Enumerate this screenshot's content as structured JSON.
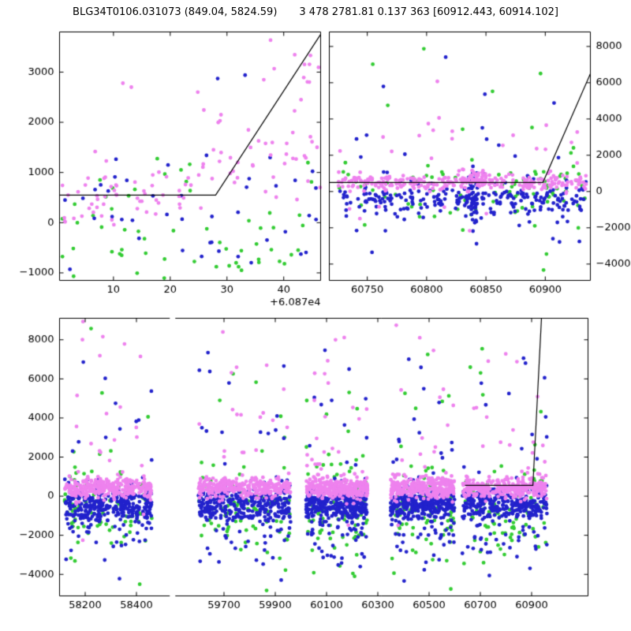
{
  "figure": {
    "title_left": "BLG34T0106.031073 (849.04, 5824.59)",
    "title_right": "3 478 2781.81 0.137 363 [60912.443, 60914.102]",
    "background": "#ffffff"
  },
  "chart_data": [
    {
      "id": "top-left-zoom",
      "type": "scatter",
      "xlim": [
        [
          0.5,
          46.5
        ]
      ],
      "xticks": [
        10,
        20,
        30,
        40
      ],
      "x_offset_label": "+6.087e4",
      "ylim": [
        -1150,
        3800
      ],
      "yticks": [
        -1000,
        0,
        1000,
        2000,
        3000
      ],
      "yaxis_side": "left",
      "model_line": [
        [
          0.5,
          550
        ],
        [
          28,
          550
        ],
        [
          46.5,
          3750
        ]
      ],
      "series": [
        {
          "name": "green",
          "color": "#33cc33",
          "clusters": [
            {
              "x": [
                0.5,
                46.5
              ],
              "n": 48,
              "mean": -100,
              "sd": 650
            },
            {
              "x": [
                25,
                45
              ],
              "n": 12,
              "mean": -500,
              "sd": 350
            }
          ]
        },
        {
          "name": "blue",
          "color": "#2222cc",
          "clusters": [
            {
              "x": [
                0.5,
                46.5
              ],
              "n": 44,
              "mean": 100,
              "sd": 800
            },
            {
              "x": [
                28,
                34
              ],
              "n": 2,
              "mean": 2900,
              "sd": 150
            }
          ]
        },
        {
          "name": "violet",
          "color": "#ee82ee",
          "clusters": [
            {
              "x": [
                0.5,
                24
              ],
              "n": 55,
              "mean": 550,
              "sd": 280
            },
            {
              "x": [
                24,
                46.5
              ],
              "n": 45,
              "mean": 1300,
              "sd": 500
            },
            {
              "x": [
                36,
                46.5
              ],
              "n": 12,
              "mean": 2900,
              "sd": 350
            },
            {
              "x": [
                10,
                15
              ],
              "n": 2,
              "mean": 2750,
              "sd": 100
            }
          ]
        }
      ]
    },
    {
      "id": "top-right-zoom",
      "type": "scatter",
      "xlim": [
        [
          60718,
          60938
        ]
      ],
      "xticks": [
        60750,
        60800,
        60850,
        60900
      ],
      "ylim": [
        -4900,
        8800
      ],
      "yticks": [
        -4000,
        -2000,
        0,
        2000,
        4000,
        6000,
        8000
      ],
      "yaxis_side": "right",
      "model_line": [
        [
          60718,
          500
        ],
        [
          60898,
          500
        ],
        [
          60938,
          6500
        ]
      ],
      "series": [
        {
          "name": "green",
          "color": "#33cc33",
          "clusters": [
            {
              "x": [
                60725,
                60935
              ],
              "n": 60,
              "mean": 0,
              "sd": 900
            },
            {
              "x": [
                60725,
                60935
              ],
              "n": 18,
              "mean": 1500,
              "sd": 3000
            },
            {
              "x": [
                60880,
                60935
              ],
              "n": 25,
              "mean": 500,
              "sd": 700
            }
          ]
        },
        {
          "name": "blue",
          "color": "#2222cc",
          "clusters": [
            {
              "x": [
                60725,
                60935
              ],
              "n": 230,
              "mean": -400,
              "sd": 450
            },
            {
              "x": [
                60835,
                60843
              ],
              "n": 40,
              "mean": -300,
              "sd": 900
            },
            {
              "x": [
                60725,
                60935
              ],
              "n": 22,
              "mean": 1200,
              "sd": 2600
            },
            {
              "x": [
                60725,
                60935
              ],
              "n": 8,
              "mean": -2500,
              "sd": 900
            }
          ]
        },
        {
          "name": "violet",
          "color": "#ee82ee",
          "clusters": [
            {
              "x": [
                60725,
                60935
              ],
              "n": 250,
              "mean": 500,
              "sd": 230
            },
            {
              "x": [
                60830,
                60850
              ],
              "n": 40,
              "mean": 600,
              "sd": 280
            },
            {
              "x": [
                60725,
                60935
              ],
              "n": 28,
              "mean": 2200,
              "sd": 1800
            },
            {
              "x": [
                60725,
                60935
              ],
              "n": 6,
              "mean": -1500,
              "sd": 1200
            }
          ]
        }
      ]
    },
    {
      "id": "full-lightcurve",
      "type": "scatter",
      "xlim": [
        [
          58100,
          58530
        ],
        [
          59510,
          61120
        ]
      ],
      "xticks": [
        58200,
        58400,
        59700,
        59900,
        60100,
        60300,
        60500,
        60700,
        60900
      ],
      "ylim": [
        -5100,
        9100
      ],
      "yticks": [
        -4000,
        -2000,
        0,
        2000,
        4000,
        6000,
        8000
      ],
      "yaxis_side": "left",
      "model_line": [
        [
          60640,
          550
        ],
        [
          60905,
          550
        ],
        [
          60940,
          9500
        ]
      ],
      "seasons": [
        [
          58120,
          58460
        ],
        [
          59600,
          59960
        ],
        [
          60020,
          60260
        ],
        [
          60350,
          60600
        ],
        [
          60630,
          60960
        ]
      ],
      "series": [
        {
          "name": "green",
          "color": "#33cc33",
          "per_season": [
            {
              "n": 70,
              "mean": -600,
              "sd": 900
            },
            {
              "n": 10,
              "mean": 3000,
              "sd": 2500
            },
            {
              "n": 8,
              "mean": -2800,
              "sd": 900
            }
          ]
        },
        {
          "name": "blue",
          "color": "#2222cc",
          "per_season": [
            {
              "n": 280,
              "mean": -450,
              "sd": 420
            },
            {
              "n": 60,
              "mean": -1500,
              "sd": 1100
            },
            {
              "n": 14,
              "mean": 2500,
              "sd": 2000
            },
            {
              "n": 3,
              "mean": 6500,
              "sd": 800
            }
          ]
        },
        {
          "name": "violet",
          "color": "#ee82ee",
          "per_season": [
            {
              "n": 300,
              "mean": 420,
              "sd": 260
            },
            {
              "n": 20,
              "mean": 2800,
              "sd": 2000
            },
            {
              "n": 4,
              "mean": 7200,
              "sd": 900
            }
          ]
        }
      ]
    }
  ]
}
